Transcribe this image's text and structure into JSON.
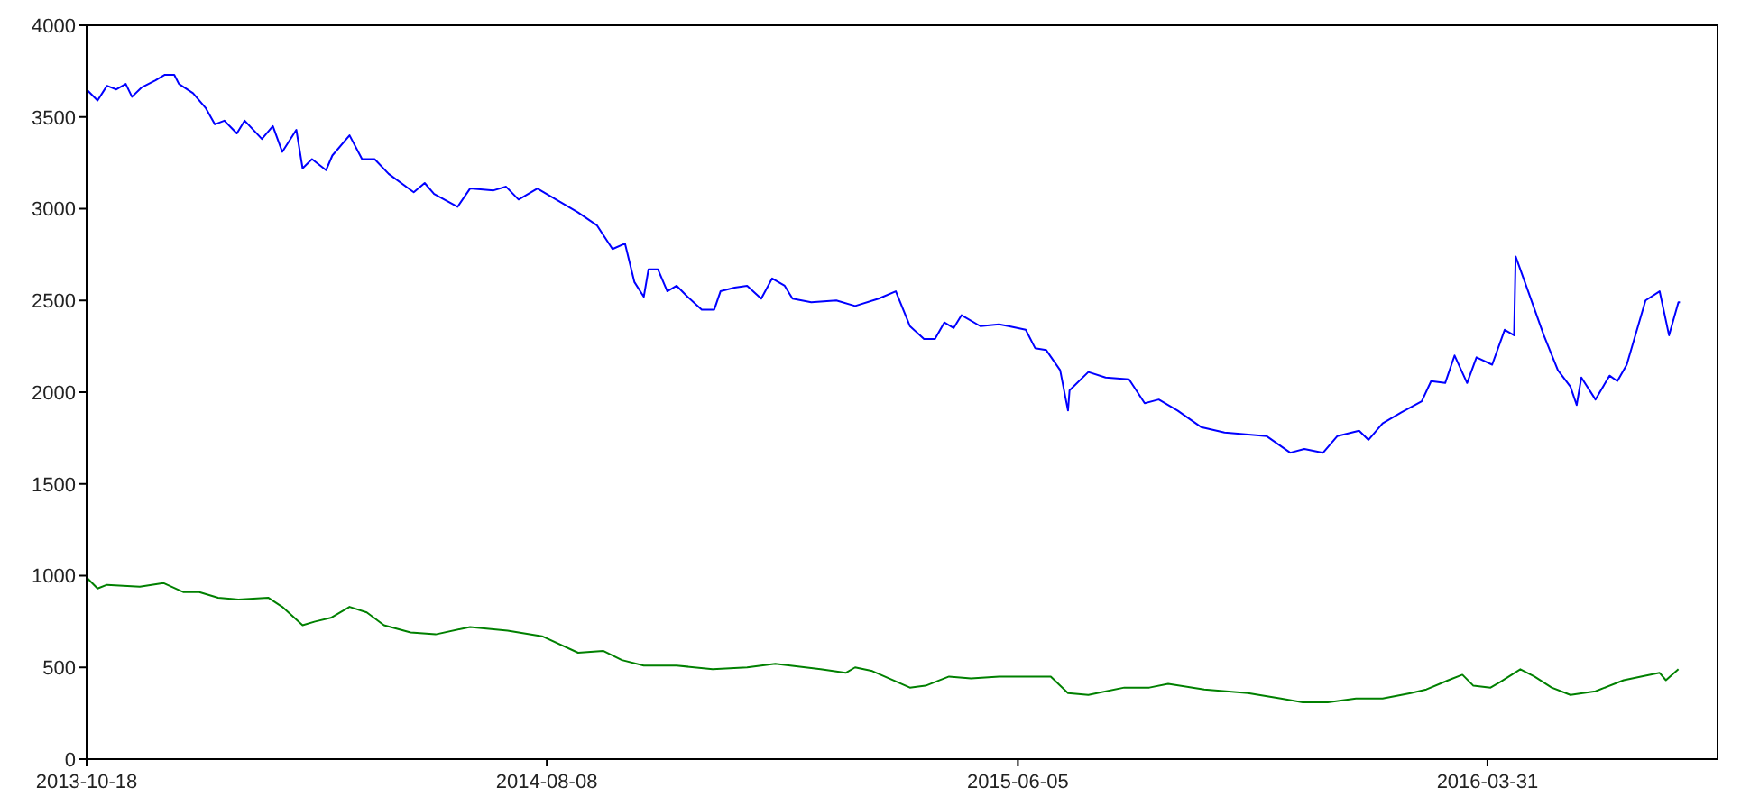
{
  "chart_data": {
    "type": "line",
    "xlim": [
      "2013-10-18",
      "2016-08-25"
    ],
    "xticks": [
      "2013-10-18",
      "2014-08-08",
      "2015-06-05",
      "2016-03-31"
    ],
    "ylim": [
      0,
      4000
    ],
    "yticks": [
      0,
      500,
      1000,
      1500,
      2000,
      2500,
      3000,
      3500,
      4000
    ],
    "grid": false,
    "legend": false,
    "marker": "none",
    "line_style": "solid",
    "series": [
      {
        "color": "#0000ff",
        "x": [
          "2013-10-18",
          "2013-10-25",
          "2013-10-31",
          "2013-11-06",
          "2013-11-12",
          "2013-11-16",
          "2013-11-22",
          "2013-12-01",
          "2013-12-07",
          "2013-12-13",
          "2013-12-16",
          "2013-12-25",
          "2014-01-02",
          "2014-01-08",
          "2014-01-14",
          "2014-01-22",
          "2014-01-27",
          "2014-02-07",
          "2014-02-14",
          "2014-02-20",
          "2014-03-01",
          "2014-03-05",
          "2014-03-11",
          "2014-03-20",
          "2014-03-24",
          "2014-04-04",
          "2014-04-12",
          "2014-04-20",
          "2014-04-29",
          "2014-05-15",
          "2014-05-22",
          "2014-05-28",
          "2014-06-12",
          "2014-06-20",
          "2014-07-05",
          "2014-07-13",
          "2014-07-21",
          "2014-08-02",
          "2014-08-28",
          "2014-09-09",
          "2014-09-19",
          "2014-09-27",
          "2014-10-03",
          "2014-10-09",
          "2014-10-12",
          "2014-10-18",
          "2014-10-24",
          "2014-10-30",
          "2014-11-06",
          "2014-11-15",
          "2014-11-23",
          "2014-11-27",
          "2014-12-06",
          "2014-12-14",
          "2014-12-23",
          "2014-12-30",
          "2015-01-07",
          "2015-01-12",
          "2015-01-24",
          "2015-02-09",
          "2015-02-21",
          "2015-03-08",
          "2015-03-19",
          "2015-03-28",
          "2015-04-06",
          "2015-04-13",
          "2015-04-19",
          "2015-04-25",
          "2015-04-30",
          "2015-05-12",
          "2015-05-24",
          "2015-05-30",
          "2015-06-10",
          "2015-06-16",
          "2015-06-23",
          "2015-07-02",
          "2015-07-07",
          "2015-07-08",
          "2015-07-20",
          "2015-07-31",
          "2015-08-15",
          "2015-08-25",
          "2015-09-03",
          "2015-09-15",
          "2015-09-30",
          "2015-10-15",
          "2015-11-11",
          "2015-11-26",
          "2015-12-05",
          "2015-12-17",
          "2015-12-26",
          "2016-01-09",
          "2016-01-15",
          "2016-01-24",
          "2016-02-05",
          "2016-02-18",
          "2016-02-24",
          "2016-03-04",
          "2016-03-10",
          "2016-03-18",
          "2016-03-24",
          "2016-04-03",
          "2016-04-11",
          "2016-04-17",
          "2016-04-18",
          "2016-04-26",
          "2016-05-06",
          "2016-05-15",
          "2016-05-23",
          "2016-05-27",
          "2016-05-30",
          "2016-06-08",
          "2016-06-17",
          "2016-06-22",
          "2016-06-28",
          "2016-07-10",
          "2016-07-19",
          "2016-07-25",
          "2016-07-31",
          "2016-08-01"
        ],
        "values": [
          3650,
          3590,
          3670,
          3650,
          3680,
          3610,
          3660,
          3700,
          3730,
          3730,
          3680,
          3630,
          3550,
          3460,
          3480,
          3410,
          3480,
          3380,
          3450,
          3310,
          3430,
          3220,
          3270,
          3210,
          3290,
          3400,
          3270,
          3270,
          3190,
          3090,
          3140,
          3080,
          3010,
          3110,
          3100,
          3120,
          3050,
          3110,
          2980,
          2910,
          2780,
          2810,
          2600,
          2520,
          2670,
          2670,
          2550,
          2580,
          2520,
          2450,
          2450,
          2550,
          2570,
          2580,
          2510,
          2620,
          2580,
          2510,
          2490,
          2500,
          2470,
          2510,
          2550,
          2360,
          2290,
          2290,
          2380,
          2350,
          2420,
          2360,
          2370,
          2360,
          2340,
          2240,
          2230,
          2120,
          1900,
          2010,
          2110,
          2080,
          2070,
          1940,
          1960,
          1900,
          1810,
          1780,
          1760,
          1670,
          1690,
          1670,
          1760,
          1790,
          1740,
          1830,
          1890,
          1950,
          2060,
          2050,
          2200,
          2050,
          2190,
          2150,
          2340,
          2310,
          2740,
          2550,
          2310,
          2120,
          2030,
          1930,
          2080,
          1960,
          2090,
          2060,
          2150,
          2500,
          2550,
          2310,
          2490,
          2490
        ]
      },
      {
        "color": "#008000",
        "x": [
          "2013-10-18",
          "2013-10-25",
          "2013-10-31",
          "2013-11-21",
          "2013-12-06",
          "2013-12-19",
          "2013-12-29",
          "2014-01-10",
          "2014-01-23",
          "2014-02-11",
          "2014-02-20",
          "2014-03-05",
          "2014-03-13",
          "2014-03-23",
          "2014-04-04",
          "2014-04-15",
          "2014-04-26",
          "2014-05-13",
          "2014-05-29",
          "2014-06-20",
          "2014-07-14",
          "2014-08-05",
          "2014-08-28",
          "2014-09-13",
          "2014-09-25",
          "2014-10-09",
          "2014-10-30",
          "2014-11-22",
          "2014-12-14",
          "2015-01-01",
          "2015-01-30",
          "2015-02-15",
          "2015-02-21",
          "2015-03-04",
          "2015-03-28",
          "2015-04-07",
          "2015-04-22",
          "2015-05-06",
          "2015-05-24",
          "2015-06-10",
          "2015-06-26",
          "2015-07-07",
          "2015-07-20",
          "2015-08-12",
          "2015-08-28",
          "2015-09-09",
          "2015-10-02",
          "2015-10-30",
          "2015-11-20",
          "2015-12-04",
          "2015-12-20",
          "2016-01-07",
          "2016-01-24",
          "2016-02-11",
          "2016-02-21",
          "2016-03-06",
          "2016-03-15",
          "2016-03-22",
          "2016-04-02",
          "2016-04-08",
          "2016-04-21",
          "2016-04-30",
          "2016-05-11",
          "2016-05-23",
          "2016-06-08",
          "2016-06-26",
          "2016-07-07",
          "2016-07-19",
          "2016-07-23",
          "2016-07-31"
        ],
        "values": [
          990,
          930,
          950,
          940,
          960,
          910,
          910,
          880,
          870,
          880,
          830,
          730,
          750,
          770,
          830,
          800,
          730,
          690,
          680,
          720,
          700,
          670,
          580,
          590,
          540,
          510,
          510,
          490,
          500,
          520,
          490,
          470,
          500,
          480,
          390,
          400,
          450,
          440,
          450,
          450,
          450,
          360,
          350,
          390,
          390,
          410,
          380,
          360,
          330,
          310,
          310,
          330,
          330,
          360,
          380,
          430,
          460,
          400,
          390,
          420,
          490,
          450,
          390,
          350,
          370,
          430,
          450,
          470,
          430,
          490
        ]
      }
    ]
  }
}
